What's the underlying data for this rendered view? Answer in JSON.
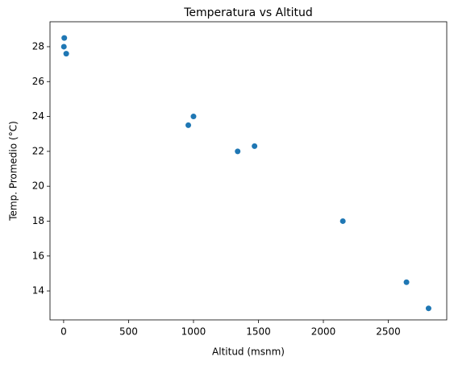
{
  "chart_data": {
    "type": "scatter",
    "title": "Temperatura vs Altitud",
    "x_label": "Altitud (msnm)",
    "y_label": "Temp. Promedio (°C)",
    "series": [
      {
        "color": "#1f77b4",
        "x": [
          5,
          2,
          20,
          960,
          1000,
          1340,
          1470,
          2150,
          2640,
          2810
        ],
        "values": [
          28.5,
          28,
          27.6,
          23.5,
          24,
          22,
          22.3,
          18,
          14.5,
          13
        ]
      }
    ],
    "xlim": [
      -105,
      2950
    ],
    "ylim": [
      12.34,
      29.43
    ],
    "xticks": [
      0,
      500,
      1000,
      1500,
      2000,
      2500
    ],
    "yticks": [
      14,
      16,
      18,
      20,
      22,
      24,
      26,
      28
    ]
  }
}
